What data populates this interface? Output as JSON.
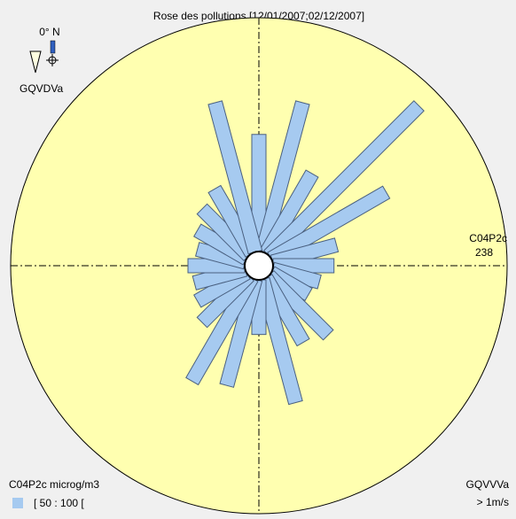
{
  "chart_data": {
    "type": "rose",
    "title": "Rose des pollutions [12/01/2007;02/12/2007]",
    "north_label": "0° N",
    "station": "GQVDVa",
    "value_axis_label": "C04P2c",
    "unit_label": "C04P2c microg/m3",
    "wind_station": "GQVVVa",
    "wind_filter": "> 1m/s",
    "rlim": [
      0,
      238
    ],
    "series": [
      {
        "name": "[ 50 : 100 [",
        "color": "#a6caf0",
        "values": [
          126,
          162,
          102,
          217,
          141,
          77,
          72,
          60,
          55,
          94,
          85,
          136,
          66,
          119,
          128,
          77,
          68,
          64,
          68,
          61,
          68,
          77,
          85,
          162
        ]
      }
    ]
  }
}
